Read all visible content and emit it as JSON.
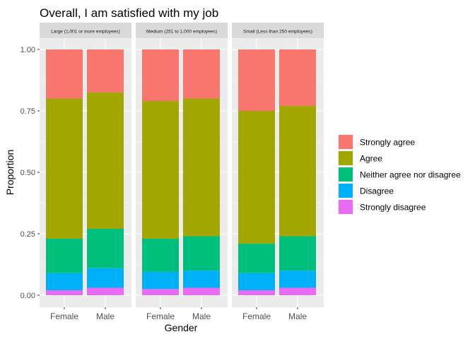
{
  "chart_data": {
    "type": "bar",
    "stacked": true,
    "title": "Overall, I am satisfied with my job",
    "xlabel": "Gender",
    "ylabel": "Proportion",
    "ylim": [
      0,
      1
    ],
    "yticks": [
      "0.00",
      "0.25",
      "0.50",
      "0.75",
      "1.00"
    ],
    "ytick_values": [
      0,
      0.25,
      0.5,
      0.75,
      1.0
    ],
    "grid": true,
    "legend_position": "right",
    "categories": [
      "Female",
      "Male"
    ],
    "series": [
      {
        "name": "Strongly agree",
        "color": "#F8766D"
      },
      {
        "name": "Agree",
        "color": "#A3A500"
      },
      {
        "name": "Neither agree nor disagree",
        "color": "#00BF7D"
      },
      {
        "name": "Disagree",
        "color": "#00B0F6"
      },
      {
        "name": "Strongly disagree",
        "color": "#E76BF3"
      }
    ],
    "panels": [
      {
        "label": "Large (1,001 or more employees)",
        "bars": {
          "Female": [
            0.2,
            0.57,
            0.14,
            0.07,
            0.02
          ],
          "Male": [
            0.175,
            0.555,
            0.16,
            0.08,
            0.03
          ]
        }
      },
      {
        "label": "Medium (251 to 1,000 employees)",
        "bars": {
          "Female": [
            0.21,
            0.56,
            0.135,
            0.07,
            0.025
          ],
          "Male": [
            0.2,
            0.56,
            0.14,
            0.07,
            0.03
          ]
        }
      },
      {
        "label": "Small (Less than 250 employees)",
        "bars": {
          "Female": [
            0.25,
            0.54,
            0.12,
            0.07,
            0.02
          ],
          "Male": [
            0.23,
            0.53,
            0.14,
            0.07,
            0.03
          ]
        }
      }
    ]
  }
}
